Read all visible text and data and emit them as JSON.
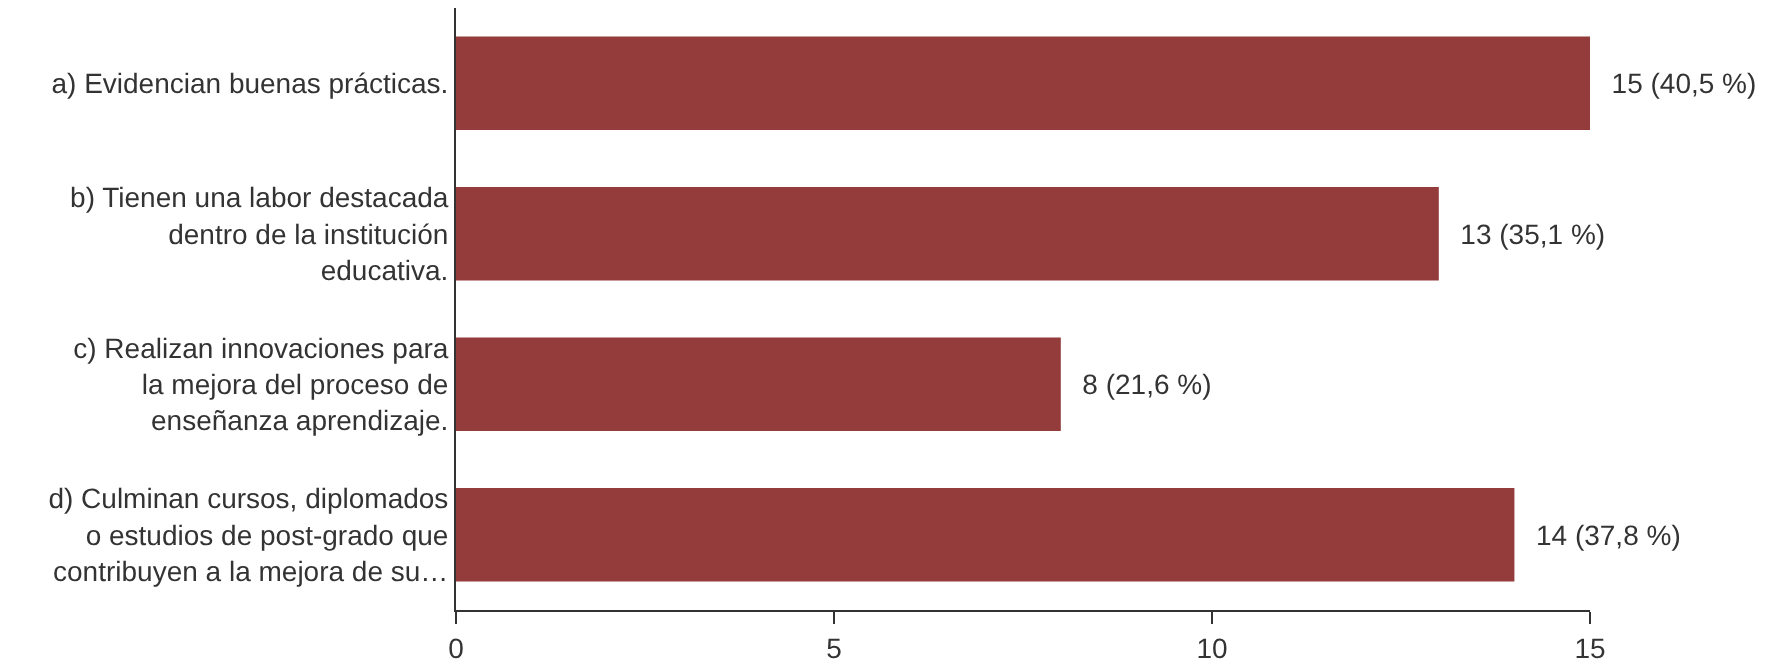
{
  "chart_data": {
    "type": "bar",
    "orientation": "horizontal",
    "categories": [
      "a) Evidencian buenas prácticas.",
      "b) Tienen una labor destacada dentro de la institución educativa.",
      "c) Realizan innovaciones para la mejora del proceso de enseñanza aprendizaje.",
      "d) Culminan cursos, diplomados o estudios de post-grado que contribuyen a la mejora de su…"
    ],
    "values": [
      15,
      13,
      8,
      14
    ],
    "value_labels": [
      "15 (40,5 %)",
      "13 (35,1 %)",
      "8 (21,6 %)",
      "14 (37,8 %)"
    ],
    "color": "#943b3b",
    "xlim": [
      0,
      15
    ],
    "xticks": [
      0,
      5,
      10,
      15
    ]
  }
}
